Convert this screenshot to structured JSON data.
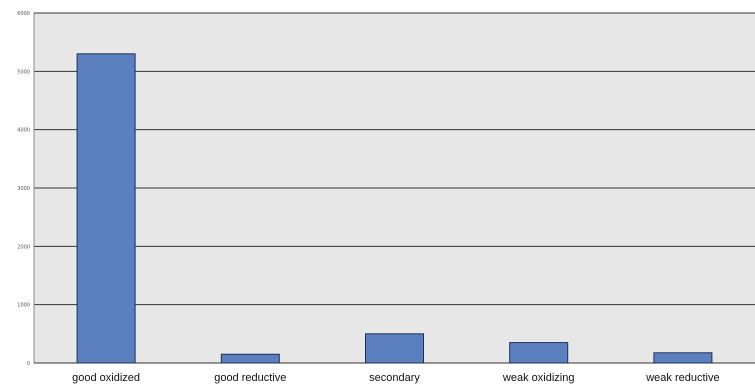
{
  "chart_data": {
    "type": "bar",
    "categories": [
      "good oxidized",
      "good reductive",
      "secondary",
      "weak oxidizing",
      "weak reductive"
    ],
    "values": [
      5300,
      150,
      500,
      350,
      175
    ],
    "ylim": [
      0,
      6000
    ],
    "y_ticks": [
      0,
      1000,
      2000,
      3000,
      4000,
      5000,
      6000
    ],
    "y_tick_labels": [
      "0",
      "1000",
      "2000",
      "3000",
      "4000",
      "5000",
      "6000"
    ],
    "grid": true,
    "colors": {
      "plot_background": "#e7e7e7",
      "bar_fill": "#5b7fbf",
      "bar_stroke": "#1f2f57",
      "grid_line": "#333333"
    }
  }
}
